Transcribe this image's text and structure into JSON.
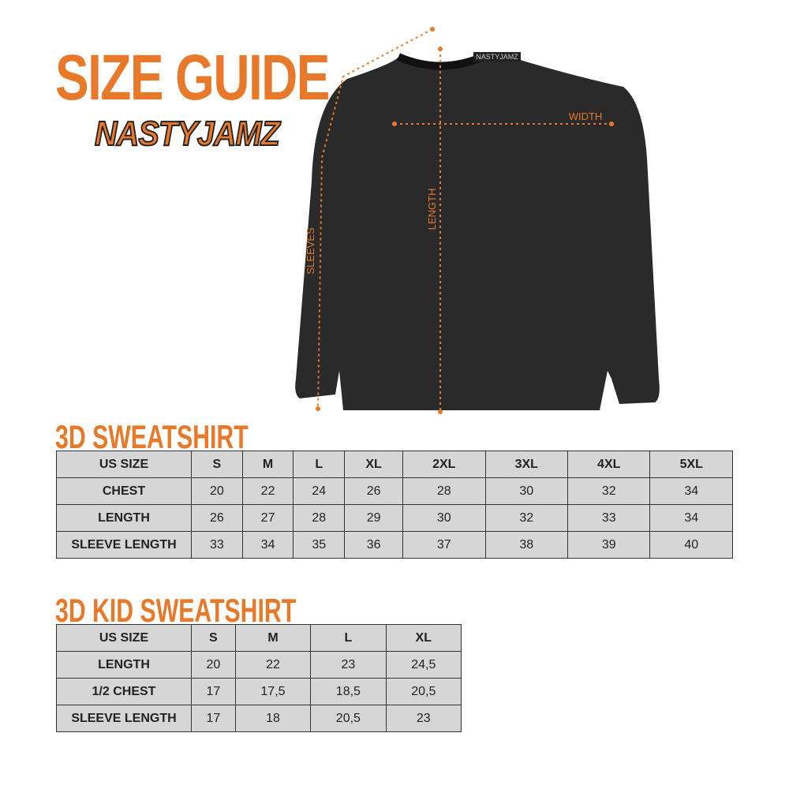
{
  "title": "SIZE GUIDE",
  "brand": "NASTYJAMZ",
  "garment": {
    "neck_label": "NASTYJAMZ",
    "measure_labels": {
      "width": "WIDTH",
      "length": "LENGTH",
      "sleeves": "SLEEVES"
    }
  },
  "colors": {
    "accent": "#e8792a",
    "cell": "#d6d6d6",
    "garment": "#2a2a2a"
  },
  "tables": [
    {
      "title": "3D SWEATSHIRT",
      "header": [
        "US SIZE",
        "S",
        "M",
        "L",
        "XL",
        "2XL",
        "3XL",
        "4XL",
        "5XL"
      ],
      "rows": [
        [
          "CHEST",
          "20",
          "22",
          "24",
          "26",
          "28",
          "30",
          "32",
          "34"
        ],
        [
          "LENGTH",
          "26",
          "27",
          "28",
          "29",
          "30",
          "32",
          "33",
          "34"
        ],
        [
          "SLEEVE LENGTH",
          "33",
          "34",
          "35",
          "36",
          "37",
          "38",
          "39",
          "40"
        ]
      ]
    },
    {
      "title": "3D KID SWEATSHIRT",
      "header": [
        "US SIZE",
        "S",
        "M",
        "L",
        "XL"
      ],
      "rows": [
        [
          "LENGTH",
          "20",
          "22",
          "23",
          "24,5"
        ],
        [
          "1/2 CHEST",
          "17",
          "17,5",
          "18,5",
          "20,5"
        ],
        [
          "SLEEVE LENGTH",
          "17",
          "18",
          "20,5",
          "23"
        ]
      ]
    }
  ]
}
